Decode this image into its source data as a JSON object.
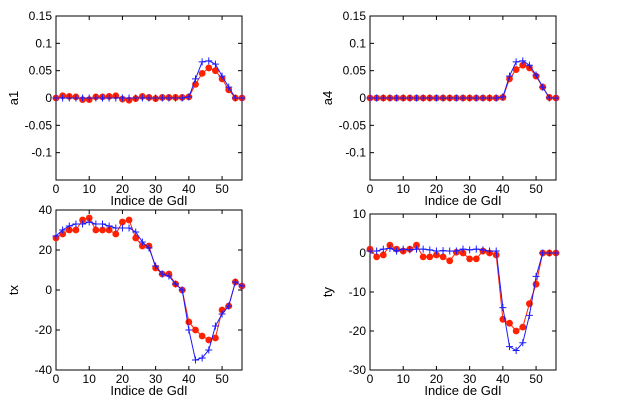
{
  "colors": {
    "red_series": "#ff2200",
    "blue_series": "#1a1aff",
    "axes": "#000000"
  },
  "chart_data": [
    {
      "type": "line",
      "xlabel": "Indice de GdI",
      "ylabel": "a1",
      "xlim": [
        0,
        56
      ],
      "ylim": [
        -0.15,
        0.15
      ],
      "xticks": [
        0,
        10,
        20,
        30,
        40,
        50
      ],
      "yticks": [
        -0.1,
        -0.05,
        0,
        0.05,
        0.1,
        0.15
      ],
      "ytick_labels": [
        "-0.1",
        "-0.05",
        "0",
        "0.05",
        "0.1",
        "0.15"
      ],
      "grid": false,
      "series": [
        {
          "color": "red",
          "marker": "filled-circle",
          "x": [
            0,
            2,
            4,
            6,
            8,
            10,
            12,
            14,
            16,
            18,
            20,
            22,
            24,
            26,
            28,
            30,
            32,
            34,
            36,
            38,
            40,
            42,
            44,
            46,
            48,
            50,
            52,
            54,
            56
          ],
          "y": [
            0,
            0.004,
            0.003,
            0.002,
            -0.003,
            -0.003,
            0.002,
            0.002,
            0.003,
            0.004,
            -0.002,
            -0.004,
            -0.001,
            0.003,
            0.001,
            -0.001,
            0.001,
            0.001,
            0.001,
            0.001,
            0.002,
            0.025,
            0.045,
            0.055,
            0.05,
            0.035,
            0.015,
            0,
            0
          ]
        },
        {
          "color": "blue",
          "marker": "plus",
          "x": [
            0,
            2,
            4,
            6,
            8,
            10,
            12,
            14,
            16,
            18,
            20,
            22,
            24,
            26,
            28,
            30,
            32,
            34,
            36,
            38,
            40,
            42,
            44,
            46,
            48,
            50,
            52,
            54,
            56
          ],
          "y": [
            0,
            0,
            0,
            0,
            0,
            0,
            0,
            0,
            0,
            0,
            0,
            0,
            0,
            0,
            0,
            0,
            0,
            0,
            0,
            0,
            0.002,
            0.035,
            0.066,
            0.068,
            0.062,
            0.04,
            0.02,
            0,
            0
          ]
        }
      ]
    },
    {
      "type": "line",
      "xlabel": "Indice de GdI",
      "ylabel": "a4",
      "xlim": [
        0,
        56
      ],
      "ylim": [
        -0.15,
        0.15
      ],
      "xticks": [
        0,
        10,
        20,
        30,
        40,
        50
      ],
      "yticks": [
        -0.1,
        -0.05,
        0,
        0.05,
        0.1,
        0.15
      ],
      "ytick_labels": [
        "-0.1",
        "-0.05",
        "0",
        "0.05",
        "0.1",
        "0.15"
      ],
      "grid": false,
      "series": [
        {
          "color": "red",
          "marker": "filled-circle",
          "x": [
            0,
            2,
            4,
            6,
            8,
            10,
            12,
            14,
            16,
            18,
            20,
            22,
            24,
            26,
            28,
            30,
            32,
            34,
            36,
            38,
            40,
            42,
            44,
            46,
            48,
            50,
            52,
            54,
            56
          ],
          "y": [
            0,
            0,
            0,
            0,
            0,
            0,
            0,
            0,
            0,
            0,
            0,
            0,
            0,
            0,
            0,
            0,
            0,
            0,
            0,
            0,
            0.001,
            0.035,
            0.052,
            0.06,
            0.055,
            0.04,
            0.02,
            0.001,
            0
          ]
        },
        {
          "color": "blue",
          "marker": "plus",
          "x": [
            0,
            2,
            4,
            6,
            8,
            10,
            12,
            14,
            16,
            18,
            20,
            22,
            24,
            26,
            28,
            30,
            32,
            34,
            36,
            38,
            40,
            42,
            44,
            46,
            48,
            50,
            52,
            54,
            56
          ],
          "y": [
            0,
            0,
            0,
            0,
            0,
            0,
            0,
            0,
            0,
            0,
            0,
            0,
            0,
            0,
            0,
            0,
            0,
            0,
            0,
            0,
            0.002,
            0.04,
            0.066,
            0.068,
            0.06,
            0.042,
            0.02,
            0,
            0
          ]
        }
      ]
    },
    {
      "type": "line",
      "xlabel": "Indice de GdI",
      "ylabel": "tx",
      "xlim": [
        0,
        56
      ],
      "ylim": [
        -40,
        40
      ],
      "xticks": [
        0,
        10,
        20,
        30,
        40,
        50
      ],
      "yticks": [
        -40,
        -20,
        0,
        20,
        40
      ],
      "ytick_labels": [
        "-40",
        "-20",
        "0",
        "20",
        "40"
      ],
      "grid": false,
      "series": [
        {
          "color": "red",
          "marker": "filled-circle",
          "x": [
            0,
            2,
            4,
            6,
            8,
            10,
            12,
            14,
            16,
            18,
            20,
            22,
            24,
            26,
            28,
            30,
            32,
            34,
            36,
            38,
            40,
            42,
            44,
            46,
            48,
            50,
            52,
            54,
            56
          ],
          "y": [
            26,
            28,
            30,
            30,
            35,
            36,
            30,
            30,
            30,
            28,
            34,
            35,
            26,
            22,
            22,
            11,
            8,
            8,
            3,
            0,
            -16,
            -20,
            -23,
            -25,
            -24,
            -10,
            -8,
            4,
            2
          ]
        },
        {
          "color": "blue",
          "marker": "plus",
          "x": [
            0,
            2,
            4,
            6,
            8,
            10,
            12,
            14,
            16,
            18,
            20,
            22,
            24,
            26,
            28,
            30,
            32,
            34,
            36,
            38,
            40,
            42,
            44,
            46,
            48,
            50,
            52,
            54,
            56
          ],
          "y": [
            27,
            30,
            32,
            33,
            33,
            34,
            33,
            33,
            32,
            31,
            31,
            31,
            29,
            24,
            21,
            12,
            8,
            7,
            3,
            0,
            -20,
            -35,
            -34,
            -30,
            -18,
            -12,
            -8,
            4,
            2
          ]
        }
      ]
    },
    {
      "type": "line",
      "xlabel": "Indice de GdI",
      "ylabel": "ty",
      "xlim": [
        0,
        56
      ],
      "ylim": [
        -30,
        10
      ],
      "xticks": [
        0,
        10,
        20,
        30,
        40,
        50
      ],
      "yticks": [
        -30,
        -20,
        -10,
        0,
        10
      ],
      "ytick_labels": [
        "-30",
        "-20",
        "-10",
        "0",
        "10"
      ],
      "grid": false,
      "series": [
        {
          "color": "red",
          "marker": "filled-circle",
          "x": [
            0,
            2,
            4,
            6,
            8,
            10,
            12,
            14,
            16,
            18,
            20,
            22,
            24,
            26,
            28,
            30,
            32,
            34,
            36,
            38,
            40,
            42,
            44,
            46,
            48,
            50,
            52,
            54,
            56
          ],
          "y": [
            1,
            -1,
            -0.5,
            2,
            1,
            0.5,
            1,
            2,
            -1,
            -1,
            -0.5,
            -1,
            -2,
            0.2,
            0,
            -1.5,
            -1.5,
            0.5,
            0,
            -0.5,
            -17,
            -18,
            -20,
            -19,
            -13,
            -8,
            0,
            0,
            0
          ]
        },
        {
          "color": "blue",
          "marker": "plus",
          "x": [
            0,
            2,
            4,
            6,
            8,
            10,
            12,
            14,
            16,
            18,
            20,
            22,
            24,
            26,
            28,
            30,
            32,
            34,
            36,
            38,
            40,
            42,
            44,
            46,
            48,
            50,
            52,
            54,
            56
          ],
          "y": [
            0.5,
            0.5,
            1,
            1.2,
            0.5,
            1,
            0.8,
            1,
            1,
            0.8,
            0.5,
            0.6,
            0.5,
            0.5,
            1,
            0.8,
            1,
            0.8,
            0.5,
            0.5,
            -14,
            -24,
            -25,
            -23,
            -16,
            -6,
            0,
            0,
            0
          ]
        }
      ]
    }
  ]
}
